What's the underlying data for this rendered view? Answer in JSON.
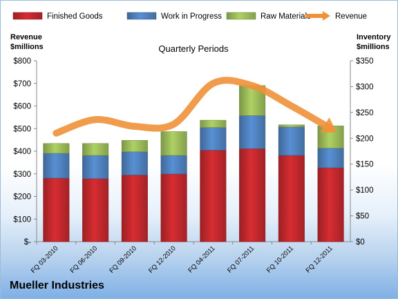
{
  "chart_data": {
    "type": "bar",
    "stacked": true,
    "subtitle": "Quarterly Periods",
    "company": "Mueller Industries",
    "left_axis": {
      "title": [
        "Revenue",
        "$millions"
      ],
      "min": 0,
      "max": 800,
      "step": 100,
      "tick_labels": [
        "$-",
        "$100",
        "$200",
        "$300",
        "$400",
        "$500",
        "$600",
        "$700",
        "$800"
      ]
    },
    "right_axis": {
      "title": [
        "Inventory",
        "$millions"
      ],
      "min": 0,
      "max": 350,
      "step": 50,
      "tick_labels": [
        "$0",
        "$50",
        "$100",
        "$150",
        "$200",
        "$250",
        "$300",
        "$350"
      ]
    },
    "categories": [
      "FQ 03-2010",
      "FQ 06-2010",
      "FQ 09-2010",
      "FQ 12-2010",
      "FQ 04-2011",
      "FQ 07-2011",
      "FQ 10-2011",
      "FQ 12-2011"
    ],
    "series": [
      {
        "name": "Finished Goods",
        "axis": "right",
        "color": "#c0282d",
        "values": [
          123,
          122,
          129,
          131,
          177,
          180,
          167,
          143
        ]
      },
      {
        "name": "Work in Progress",
        "axis": "right",
        "color": "#4f81bd",
        "values": [
          48,
          45,
          45,
          36,
          44,
          64,
          55,
          38
        ]
      },
      {
        "name": "Raw Materials",
        "axis": "right",
        "color": "#9bbb59",
        "values": [
          19,
          23,
          22,
          46,
          14,
          58,
          4,
          43
        ]
      },
      {
        "name": "Revenue",
        "axis": "left",
        "type": "line",
        "color": "#f0913a",
        "values": [
          480,
          540,
          510,
          520,
          700,
          690,
          600,
          500
        ]
      }
    ],
    "grid": false,
    "legend_position": "top"
  }
}
